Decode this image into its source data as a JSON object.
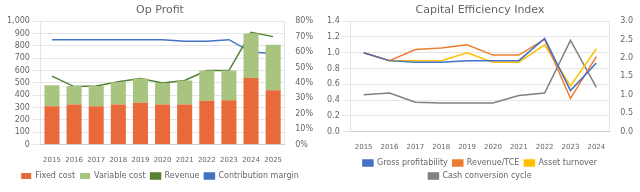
{
  "chart_data": [
    {
      "type": "bar",
      "title": "Op Profit",
      "categories": [
        "2015",
        "2016",
        "2017",
        "2018",
        "2019",
        "2020",
        "2021",
        "2022",
        "2023",
        "2024",
        "2025"
      ],
      "stacked": true,
      "grid": true,
      "legend": "bottom",
      "ylim": [
        0,
        1000
      ],
      "yticks": [
        0,
        100,
        200,
        300,
        400,
        500,
        600,
        700,
        800,
        900,
        {
          "value": 1000,
          "label": "1,000"
        }
      ],
      "y2lim": [
        0,
        80
      ],
      "y2ticks": [
        {
          "value": 0,
          "label": "0%"
        },
        {
          "value": 10,
          "label": "10%"
        },
        {
          "value": 20,
          "label": "20%"
        },
        {
          "value": 30,
          "label": "30%"
        },
        {
          "value": 40,
          "label": "40%"
        },
        {
          "value": 50,
          "label": "50%"
        },
        {
          "value": 60,
          "label": "60%"
        },
        {
          "value": 70,
          "label": "70%"
        },
        {
          "value": 80,
          "label": "80%"
        }
      ],
      "series": [
        {
          "name": "Fixed cost",
          "type": "bar",
          "color": "#E8693A",
          "values": [
            310,
            325,
            310,
            325,
            340,
            325,
            325,
            355,
            360,
            540,
            440
          ]
        },
        {
          "name": "Variable cost",
          "type": "bar",
          "color": "#A9C47F",
          "values": [
            170,
            150,
            165,
            180,
            195,
            175,
            195,
            245,
            240,
            360,
            370
          ]
        },
        {
          "name": "Revenue",
          "type": "line",
          "color": "#548235",
          "values": [
            555,
            470,
            475,
            510,
            535,
            500,
            520,
            600,
            600,
            910,
            875
          ]
        },
        {
          "name": "Contribution margin",
          "type": "line",
          "color": "#4472C4",
          "axis": "y2",
          "values": [
            68,
            68,
            68,
            68,
            68,
            68,
            67,
            67,
            68,
            60,
            59
          ]
        }
      ]
    },
    {
      "type": "line",
      "title": "Capital Efficiency Index",
      "categories": [
        "2015",
        "2016",
        "2017",
        "2018",
        "2019",
        "2020",
        "2021",
        "2022",
        "2023",
        "2024"
      ],
      "grid": true,
      "legend": "bottom",
      "ylim": [
        0.0,
        1.4
      ],
      "yticks": [
        {
          "value": 0,
          "label": "0.0"
        },
        0.2,
        0.4,
        0.6,
        0.8,
        {
          "value": 1,
          "label": "1.0"
        },
        1.2,
        1.4
      ],
      "y2lim": [
        0.0,
        3.0
      ],
      "y2ticks": [
        {
          "value": 0,
          "label": "0.0"
        },
        0.5,
        {
          "value": 1,
          "label": "1.0"
        },
        1.5,
        {
          "value": 2,
          "label": "2.0"
        },
        2.5,
        {
          "value": 3,
          "label": "3.0"
        }
      ],
      "series": [
        {
          "name": "Gross profitability",
          "color": "#4472C4",
          "values": [
            1.0,
            0.9,
            0.88,
            0.88,
            0.9,
            0.9,
            0.9,
            1.18,
            0.52,
            0.87
          ]
        },
        {
          "name": "Revenue/TCE",
          "color": "#ED7D31",
          "values": [
            1.0,
            0.9,
            1.04,
            1.06,
            1.1,
            0.97,
            0.97,
            1.17,
            0.42,
            0.95
          ]
        },
        {
          "name": "Asset turnover",
          "color": "#FFC000",
          "values": [
            1.0,
            0.9,
            0.9,
            0.9,
            1.0,
            0.88,
            0.88,
            1.1,
            0.58,
            1.05
          ]
        },
        {
          "name": "Cash conversion cycle",
          "color": "#808080",
          "axis": "y2",
          "values": [
            1.0,
            1.05,
            0.8,
            0.78,
            0.78,
            0.78,
            0.98,
            1.05,
            2.48,
            1.2
          ]
        }
      ]
    }
  ]
}
